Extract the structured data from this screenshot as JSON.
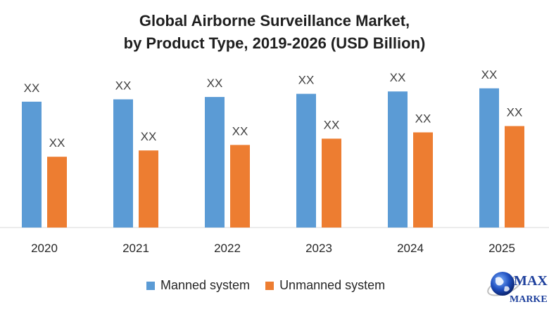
{
  "chart_data": {
    "type": "bar",
    "title_line1": "Global Airborne Surveillance Market,",
    "title_line2": "by Product Type, 2019-2026 (USD Billion)",
    "categories": [
      "2020",
      "2021",
      "2022",
      "2023",
      "2024",
      "2025"
    ],
    "series": [
      {
        "name": "Manned system",
        "color": "#5b9bd5",
        "values": [
          160,
          163,
          166,
          170,
          173,
          177
        ],
        "labels": [
          "XX",
          "XX",
          "XX",
          "XX",
          "XX",
          "XX"
        ]
      },
      {
        "name": "Unmanned system",
        "color": "#ed7d31",
        "values": [
          90,
          98,
          105,
          113,
          121,
          129
        ],
        "labels": [
          "XX",
          "XX",
          "XX",
          "XX",
          "XX",
          "XX"
        ]
      }
    ],
    "ylim": [
      0,
      200
    ],
    "xlabel": "",
    "ylabel": "",
    "grid": false,
    "legend_position": "bottom"
  },
  "logo": {
    "text_line1": "MAX",
    "text_line2": "MARKE"
  }
}
